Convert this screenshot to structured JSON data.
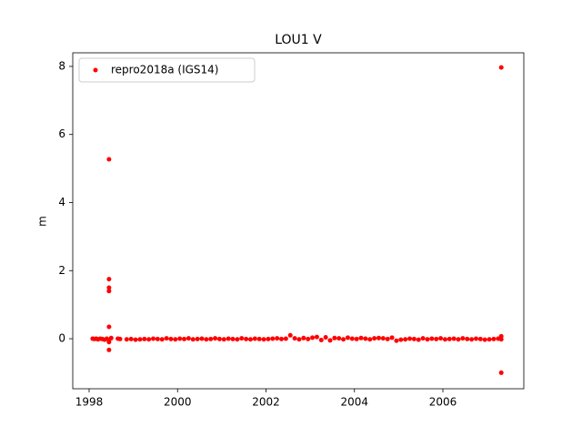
{
  "chart_data": {
    "type": "scatter",
    "title": "LOU1 V",
    "y_label": "m",
    "series": [
      {
        "name": "repro2018a (IGS14)",
        "color": "#ff0000",
        "x": [
          1998.08,
          1998.12,
          1998.16,
          1998.2,
          1998.25,
          1998.3,
          1998.35,
          1998.4,
          1998.45,
          1998.45,
          1998.45,
          1998.45,
          1998.45,
          1998.45,
          1998.45,
          1998.45,
          1998.5,
          1998.65,
          1998.7,
          1998.85,
          1998.95,
          1999.05,
          1999.15,
          1999.25,
          1999.35,
          1999.45,
          1999.55,
          1999.65,
          1999.75,
          1999.85,
          1999.95,
          2000.05,
          2000.15,
          2000.25,
          2000.35,
          2000.45,
          2000.55,
          2000.65,
          2000.75,
          2000.85,
          2000.95,
          2001.05,
          2001.15,
          2001.25,
          2001.35,
          2001.45,
          2001.55,
          2001.65,
          2001.75,
          2001.85,
          2001.95,
          2002.05,
          2002.15,
          2002.25,
          2002.35,
          2002.45,
          2002.55,
          2002.65,
          2002.75,
          2002.85,
          2002.95,
          2003.05,
          2003.15,
          2003.25,
          2003.35,
          2003.45,
          2003.55,
          2003.65,
          2003.75,
          2003.85,
          2003.95,
          2004.05,
          2004.15,
          2004.25,
          2004.35,
          2004.45,
          2004.55,
          2004.65,
          2004.75,
          2004.85,
          2004.95,
          2005.05,
          2005.15,
          2005.25,
          2005.35,
          2005.45,
          2005.55,
          2005.65,
          2005.75,
          2005.85,
          2005.95,
          2006.05,
          2006.15,
          2006.25,
          2006.35,
          2006.45,
          2006.55,
          2006.65,
          2006.75,
          2006.85,
          2006.95,
          2007.05,
          2007.15,
          2007.25,
          2007.32,
          2007.32,
          2007.32,
          2007.32
        ],
        "values": [
          0,
          -0.01,
          0,
          -0.02,
          0,
          -0.01,
          -0.03,
          0,
          5.27,
          1.75,
          1.5,
          1.4,
          0.35,
          -0.33,
          -0.1,
          -0.05,
          0.02,
          0,
          -0.01,
          -0.02,
          -0.01,
          -0.03,
          -0.02,
          -0.01,
          -0.02,
          0,
          -0.01,
          -0.02,
          0.01,
          -0.01,
          -0.02,
          0,
          -0.01,
          0.01,
          -0.02,
          -0.01,
          0,
          -0.02,
          -0.01,
          0.01,
          -0.01,
          -0.02,
          0,
          -0.01,
          -0.02,
          0.01,
          -0.01,
          -0.02,
          0,
          -0.01,
          -0.02,
          -0.01,
          0,
          0.01,
          -0.01,
          0,
          0.1,
          0.01,
          -0.02,
          0.02,
          -0.01,
          0.03,
          0.05,
          -0.04,
          0.04,
          -0.05,
          0.02,
          0.01,
          -0.02,
          0.03,
          0,
          -0.01,
          0.02,
          0,
          -0.02,
          0.01,
          0.02,
          0.01,
          -0.01,
          0.03,
          -0.06,
          -0.03,
          -0.02,
          0,
          -0.01,
          -0.03,
          0.01,
          -0.02,
          0,
          -0.01,
          0.01,
          -0.02,
          -0.01,
          0,
          -0.02,
          0.01,
          -0.01,
          -0.02,
          0,
          -0.01,
          -0.03,
          -0.02,
          -0.01,
          0,
          7.97,
          -1.0,
          0.07,
          -0.02
        ]
      }
    ],
    "xlim": [
      1997.63,
      2007.83
    ],
    "xticks": [
      1998,
      2000,
      2002,
      2004,
      2006
    ],
    "ylim": [
      -1.47,
      8.4
    ],
    "yticks": [
      0,
      2,
      4,
      6,
      8
    ],
    "legend": "upper left"
  }
}
